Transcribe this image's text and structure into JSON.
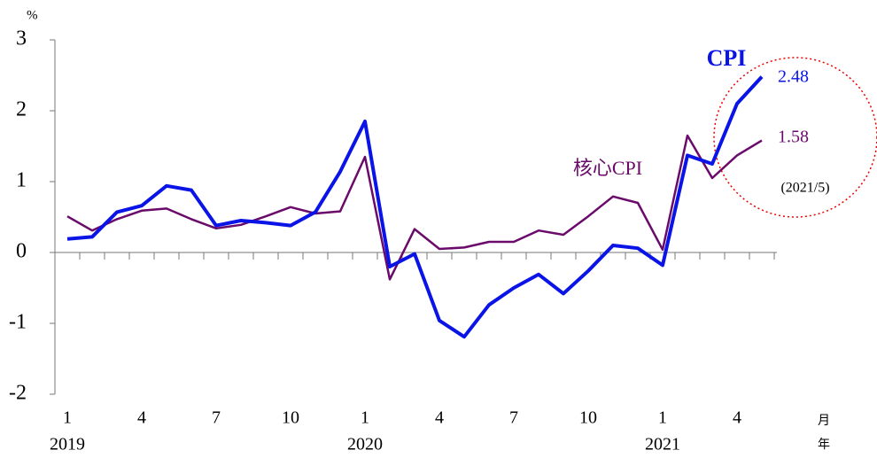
{
  "chart_data": {
    "type": "line",
    "y_unit": "%",
    "x_unit_month": "月",
    "x_unit_year": "年",
    "categories": [
      "1",
      null,
      null,
      "4",
      null,
      null,
      "7",
      null,
      null,
      "10",
      null,
      null,
      "1",
      null,
      null,
      "4",
      null,
      null,
      "7",
      null,
      null,
      "10",
      null,
      null,
      "1",
      null,
      null,
      "4",
      null
    ],
    "years": [
      "2019",
      null,
      null,
      null,
      null,
      null,
      null,
      null,
      null,
      null,
      null,
      null,
      "2020",
      null,
      null,
      null,
      null,
      null,
      null,
      null,
      null,
      null,
      null,
      null,
      "2021",
      null,
      null,
      null,
      null
    ],
    "series": [
      {
        "name": "CPI",
        "color": "#0a14e6",
        "width": 4,
        "values": [
          0.19,
          0.22,
          0.57,
          0.66,
          0.94,
          0.88,
          0.38,
          0.45,
          0.42,
          0.38,
          0.57,
          1.14,
          1.85,
          -0.2,
          -0.02,
          -0.96,
          -1.19,
          -0.74,
          -0.5,
          -0.31,
          -0.58,
          -0.26,
          0.1,
          0.06,
          -0.18,
          1.37,
          1.25,
          2.1,
          2.48
        ]
      },
      {
        "name": "核心CPI",
        "color": "#6a0a6a",
        "width": 2.5,
        "values": [
          0.51,
          0.31,
          0.47,
          0.59,
          0.62,
          0.47,
          0.34,
          0.39,
          0.51,
          0.64,
          0.55,
          0.58,
          1.35,
          -0.38,
          0.33,
          0.05,
          0.07,
          0.15,
          0.15,
          0.31,
          0.25,
          0.51,
          0.79,
          0.7,
          0.04,
          1.65,
          1.05,
          1.37,
          1.58
        ]
      }
    ],
    "annotation": "(2021/5)",
    "ylim": [
      -2,
      3
    ],
    "yticks": [
      -2,
      -1,
      0,
      1,
      2,
      3
    ]
  }
}
